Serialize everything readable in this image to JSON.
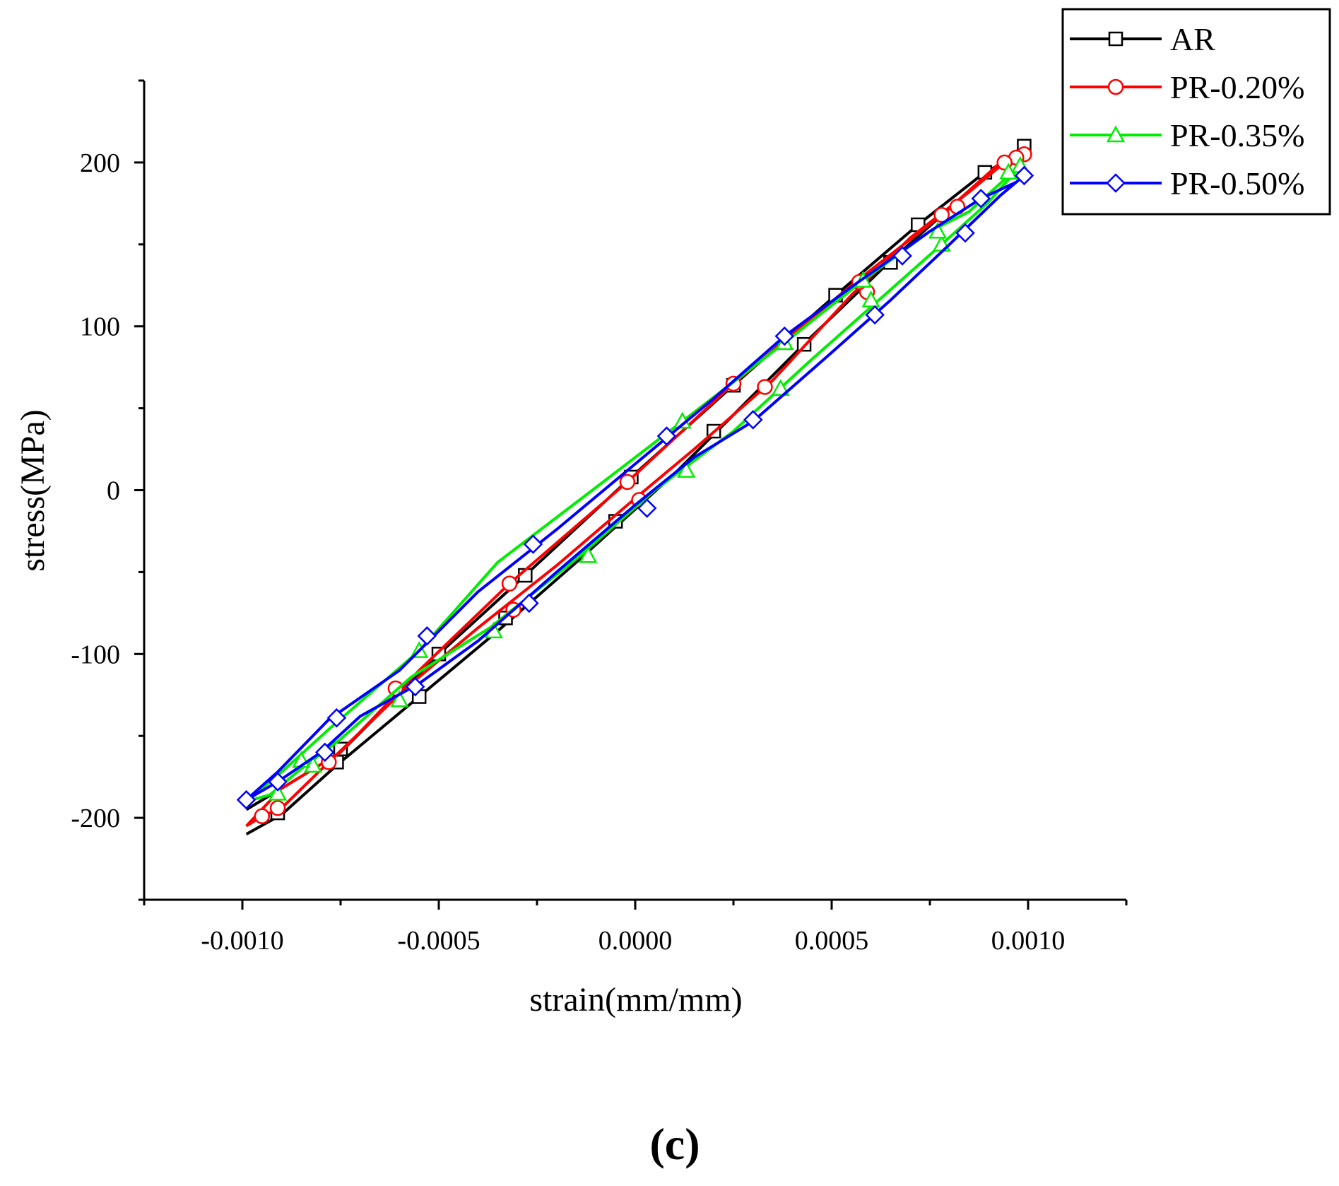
{
  "panel_label": "(c)",
  "chart_data": {
    "type": "line",
    "title": "",
    "xlabel": "strain(mm/mm)",
    "ylabel": "stress(MPa)",
    "xlim": [
      -0.00125,
      0.00125
    ],
    "ylim": [
      -250,
      250
    ],
    "x_ticks": [
      -0.001,
      -0.0005,
      0.0,
      0.0005,
      0.001
    ],
    "x_tick_labels": [
      "-0.0010",
      "-0.0005",
      "0.0000",
      "0.0005",
      "0.0010"
    ],
    "y_ticks": [
      -200,
      -100,
      0,
      100,
      200
    ],
    "y_tick_labels": [
      "-200",
      "-100",
      "0",
      "100",
      "200"
    ],
    "grid": false,
    "legend_position": "top-right",
    "series": [
      {
        "name": "AR",
        "color": "#000000",
        "marker": "square",
        "x": [
          -0.00099,
          -0.00096,
          -0.00093,
          -0.0009,
          -0.00076,
          -0.00055,
          -0.00035,
          -0.00015,
          0.0001,
          0.00025,
          0.00045,
          0.00065,
          0.0008,
          0.00093,
          0.00099,
          0.00098,
          0.00089,
          0.00072,
          0.00051,
          0.00025,
          -1e-05,
          -0.00028,
          -0.0005,
          -0.00075,
          -0.0009,
          -0.00099
        ],
        "y": [
          -210,
          -206,
          -202,
          -198,
          -168,
          -126,
          -86,
          -44,
          10,
          46,
          94,
          140,
          172,
          200,
          210,
          205,
          194,
          162,
          119,
          64,
          8,
          -52,
          -100,
          -160,
          -182,
          -195
        ],
        "marker_x": [
          0.00099,
          0.00089,
          0.00072,
          0.00065,
          0.00051,
          0.00043,
          0.00025,
          0.0002,
          -1e-05,
          -5e-05,
          -0.00028,
          -0.00033,
          -0.0005,
          -0.00055,
          -0.00075,
          -0.00076,
          -0.00091
        ],
        "marker_y": [
          210,
          194,
          162,
          139,
          119,
          89,
          64,
          36,
          8,
          -19,
          -52,
          -78,
          -100,
          -126,
          -158,
          -166,
          -197
        ]
      },
      {
        "name": "PR-0.20%",
        "color": "#ff0000",
        "marker": "circle",
        "x": [
          -0.00099,
          -0.00095,
          -0.0009,
          -0.00078,
          -0.00058,
          -0.0004,
          -0.0002,
          0.0,
          0.00015,
          0.00035,
          0.00055,
          0.0007,
          0.00085,
          0.00094,
          0.00099,
          0.00098,
          0.00093,
          0.00078,
          0.00056,
          0.00025,
          -2e-05,
          -0.00032,
          -0.00055,
          -0.00075,
          -0.0009,
          -0.00099
        ],
        "y": [
          -205,
          -199,
          -194,
          -166,
          -120,
          -84,
          -46,
          -5,
          25,
          67,
          119,
          154,
          182,
          200,
          205,
          203,
          200,
          168,
          127,
          65,
          5,
          -57,
          -110,
          -160,
          -182,
          -205
        ],
        "marker_x": [
          0.00099,
          0.00097,
          0.00094,
          0.00082,
          0.00078,
          0.00059,
          0.00057,
          0.00033,
          0.00025,
          1e-05,
          -2e-05,
          -0.00031,
          -0.00032,
          -0.00061,
          -0.00078,
          -0.00091,
          -0.00095
        ],
        "marker_y": [
          205,
          203,
          200,
          173,
          168,
          121,
          127,
          63,
          65,
          -6,
          5,
          -73,
          -57,
          -121,
          -166,
          -194,
          -199
        ]
      },
      {
        "name": "PR-0.35%",
        "color": "#00ee00",
        "marker": "triangle",
        "x": [
          -0.00099,
          -0.00093,
          -0.00085,
          -0.00075,
          -0.00057,
          -0.00037,
          -0.00015,
          5e-05,
          0.00025,
          0.00045,
          0.00062,
          0.00078,
          0.0009,
          0.00097,
          0.00099,
          0.00096,
          0.00085,
          0.00075,
          0.00058,
          0.00038,
          0.00012,
          -0.00012,
          -0.00035,
          -0.00055,
          -0.00078,
          -0.0009,
          -0.00099
        ],
        "y": [
          -190,
          -186,
          -170,
          -152,
          -114,
          -84,
          -42,
          0,
          36,
          80,
          116,
          150,
          176,
          195,
          198,
          194,
          170,
          158,
          128,
          90,
          42,
          -2,
          -44,
          -98,
          -146,
          -172,
          -190
        ],
        "marker_x": [
          0.00098,
          0.00095,
          0.00078,
          0.00077,
          0.0006,
          0.00058,
          0.00037,
          0.00038,
          0.00013,
          0.00012,
          -0.00012,
          -0.00036,
          -0.00055,
          -0.0006,
          -0.00082,
          -0.00085,
          -0.00091
        ],
        "marker_y": [
          198,
          194,
          150,
          158,
          116,
          128,
          62,
          90,
          12,
          42,
          -40,
          -86,
          -98,
          -128,
          -168,
          -165,
          -185
        ]
      },
      {
        "name": "PR-0.50%",
        "color": "#0000ff",
        "marker": "diamond",
        "x": [
          -0.00099,
          -0.00091,
          -0.0008,
          -0.0007,
          -0.00055,
          -0.0004,
          -0.0002,
          0.0,
          0.00015,
          0.0003,
          0.0005,
          0.00065,
          0.0008,
          0.00093,
          0.00099,
          0.00097,
          0.00088,
          0.00075,
          0.00055,
          0.00038,
          0.0002,
          0.0,
          -0.0002,
          -0.0004,
          -0.0006,
          -0.00078,
          -0.00091,
          -0.00099
        ],
        "y": [
          -189,
          -178,
          -160,
          -138,
          -118,
          -92,
          -50,
          -9,
          20,
          42,
          84,
          116,
          150,
          180,
          192,
          188,
          178,
          158,
          124,
          94,
          56,
          16,
          -24,
          -62,
          -110,
          -140,
          -172,
          -189
        ],
        "marker_x": [
          0.00099,
          0.00088,
          0.00084,
          0.00068,
          0.00061,
          0.00038,
          0.0003,
          8e-05,
          3e-05,
          -0.00026,
          -0.00027,
          -0.00053,
          -0.00056,
          -0.00076,
          -0.00079,
          -0.00091,
          -0.00099
        ],
        "marker_y": [
          192,
          178,
          157,
          143,
          107,
          94,
          43,
          33,
          -11,
          -33,
          -69,
          -89,
          -120,
          -139,
          -160,
          -178,
          -189
        ]
      }
    ]
  }
}
